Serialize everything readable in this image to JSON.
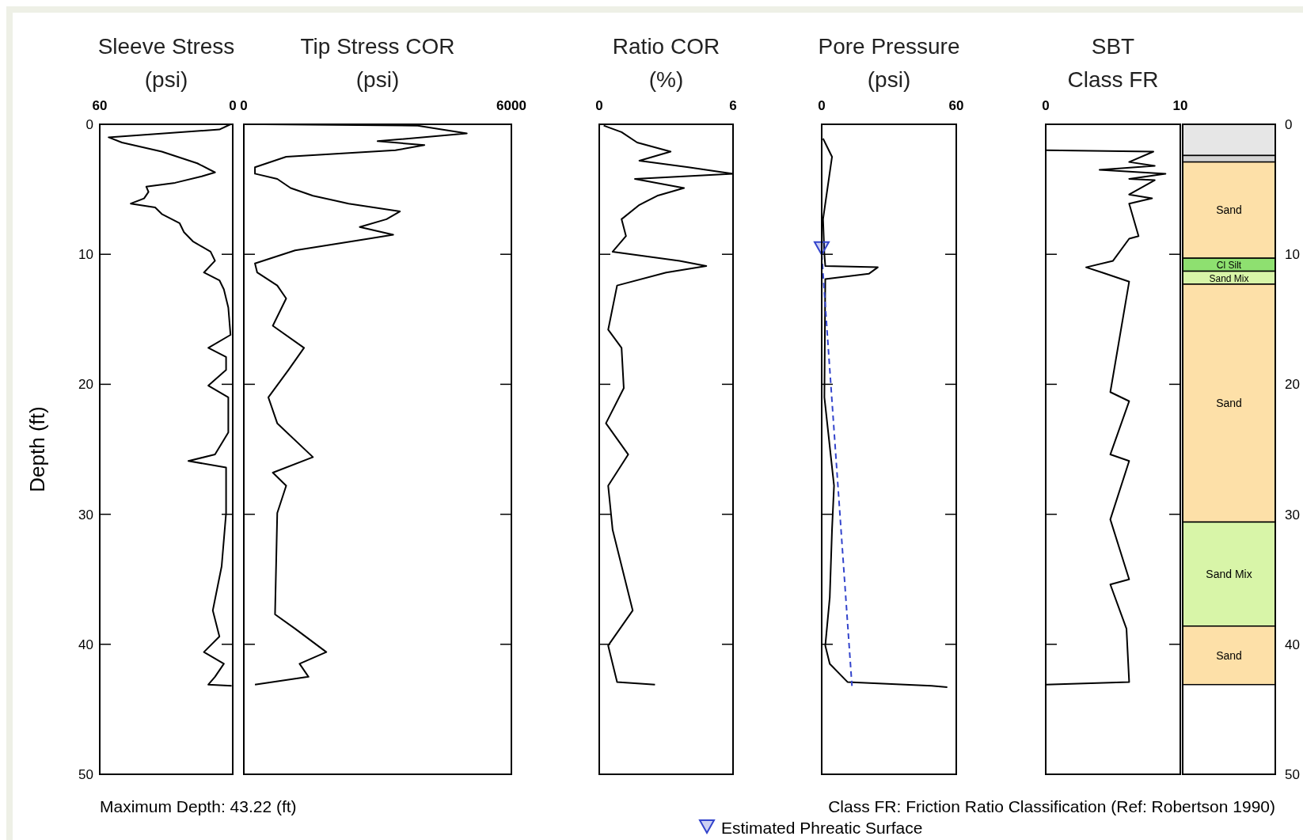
{
  "chart_data": [
    {
      "type": "line",
      "title": "Sleeve Stress",
      "subtitle": "(psi)",
      "ylabel": "Depth (ft)",
      "orientation": "horizontal",
      "xlim": [
        60,
        0
      ],
      "xticks": [
        60,
        0
      ],
      "ylim": [
        50,
        0
      ],
      "yticks": [
        0,
        10,
        20,
        30,
        40,
        50
      ],
      "annotations": [
        "Maximum Depth: 43.22 (ft)"
      ],
      "series": [
        {
          "color": "#000000",
          "x": [
            0,
            0.4,
            1.0,
            1.4,
            2.1,
            3.0,
            3.7,
            4.0,
            4.5,
            4.8,
            5.2,
            5.7,
            6.1,
            6.4,
            6.9,
            7.6,
            8.3,
            9.0,
            9.8,
            10.5,
            11.4,
            12,
            12.7,
            14.1,
            16.2,
            17.2,
            17.9,
            18.9,
            20.1,
            21,
            23.7,
            25.4,
            25.9,
            26.4,
            29.9,
            34,
            37.4,
            39.4,
            40.6,
            41.5,
            42.5,
            43.1,
            43.2
          ],
          "values": [
            1,
            6,
            56,
            50,
            32,
            16,
            8,
            14,
            26,
            39,
            38,
            40,
            46,
            35,
            32,
            24,
            22,
            18,
            10,
            8,
            13,
            6,
            4,
            2,
            1,
            11,
            3,
            3,
            11,
            2,
            2,
            8,
            20,
            3,
            3,
            5,
            9,
            6,
            13,
            4,
            8,
            11,
            0.5
          ]
        }
      ]
    },
    {
      "type": "line",
      "title": "Tip Stress COR",
      "subtitle": "(psi)",
      "orientation": "horizontal",
      "xlim": [
        0,
        6000
      ],
      "xticks": [
        0,
        6000
      ],
      "ylim": [
        50,
        0
      ],
      "yticks": [
        0,
        10,
        20,
        30,
        40,
        50
      ],
      "tick_labels": "x",
      "series": [
        {
          "color": "#000000",
          "x": [
            0,
            0.1,
            0.7,
            1.3,
            1.6,
            2.0,
            2.5,
            3.3,
            3.8,
            4.2,
            4.9,
            5.5,
            6.1,
            6.7,
            7.3,
            7.9,
            8.5,
            8.8,
            9.7,
            10.7,
            11.4,
            12.4,
            13.4,
            15.5,
            17.2,
            18.9,
            21,
            23,
            25.6,
            26.8,
            27.8,
            29.9,
            37.7,
            38.8,
            40.6,
            41.5,
            42.5,
            43.1
          ],
          "values": [
            450,
            3900,
            5000,
            3000,
            4050,
            3400,
            950,
            250,
            250,
            750,
            1050,
            1550,
            2350,
            3500,
            3200,
            2600,
            3350,
            2800,
            1150,
            250,
            300,
            750,
            950,
            650,
            1350,
            1000,
            550,
            750,
            1550,
            650,
            950,
            750,
            700,
            1150,
            1850,
            1250,
            1450,
            250
          ]
        }
      ]
    },
    {
      "type": "line",
      "title": "Ratio COR",
      "subtitle": "(%)",
      "orientation": "horizontal",
      "xlim": [
        0,
        6
      ],
      "xticks": [
        0,
        6
      ],
      "ylim": [
        50,
        0
      ],
      "yticks": [
        0,
        10,
        20,
        30,
        40,
        50
      ],
      "tick_labels": "x",
      "series": [
        {
          "color": "#000000",
          "x": [
            0.1,
            0.6,
            1.4,
            2.1,
            2.8,
            3.3,
            3.8,
            4.2,
            4.9,
            5.5,
            6.2,
            7.3,
            8.6,
            9.8,
            10.5,
            10.9,
            11.4,
            12.4,
            15.8,
            17.2,
            20.3,
            23,
            25.4,
            27.8,
            31.2,
            37.4,
            40.1,
            42.9,
            43.1
          ],
          "values": [
            0.2,
            1.0,
            1.7,
            3.2,
            1.8,
            4.0,
            6.0,
            1.6,
            3.8,
            2.6,
            1.8,
            1.0,
            1.2,
            0.6,
            3.6,
            4.8,
            3.0,
            0.8,
            0.4,
            1.0,
            1.1,
            0.3,
            1.3,
            0.4,
            0.6,
            1.5,
            0.4,
            0.8,
            2.5
          ]
        }
      ]
    },
    {
      "type": "line",
      "title": "Pore Pressure",
      "subtitle": "(psi)",
      "orientation": "horizontal",
      "xlim": [
        0,
        60
      ],
      "xticks": [
        0,
        60
      ],
      "ylim": [
        50,
        0
      ],
      "yticks": [
        0,
        10,
        20,
        30,
        40,
        50
      ],
      "tick_labels": "x",
      "legend": "bottom",
      "series": [
        {
          "color": "#000000",
          "x": [
            1.1,
            2.5,
            7.3,
            10,
            10.9,
            11,
            11.5,
            11.9,
            21,
            27.8,
            31.2,
            36.4,
            40.1,
            41.5,
            42.9,
            43.2,
            43.3
          ],
          "values": [
            0.6,
            4.6,
            0.6,
            1.2,
            1.6,
            25,
            21,
            1.6,
            1.2,
            5.5,
            4.6,
            3.6,
            1.6,
            3.6,
            11.5,
            49,
            56
          ]
        },
        {
          "type": "line",
          "color": "#3344cc",
          "line_style": "dashed",
          "x": [
            10.0,
            43.2
          ],
          "values": [
            0,
            13.5
          ]
        },
        {
          "type": "scatter",
          "name": "Estimated Phreatic Surface",
          "color": "#3344cc",
          "marker": "triangle",
          "x": [
            9.6
          ],
          "values": [
            0
          ]
        }
      ]
    },
    {
      "type": "line",
      "title": "SBT",
      "subtitle": "Class FR",
      "orientation": "horizontal",
      "xlim": [
        0,
        10
      ],
      "xticks": [
        0,
        10
      ],
      "ylim": [
        50,
        0
      ],
      "yticks": [
        0,
        10,
        20,
        30,
        40,
        50
      ],
      "tick_labels": "x",
      "annotations": [
        "Class FR: Friction Ratio Classification (Ref: Robertson 1990)"
      ],
      "series": [
        {
          "color": "#000000",
          "x": [
            2.0,
            2.1,
            2.9,
            3.2,
            3.5,
            3.8,
            4.2,
            4.3,
            5.4,
            5.7,
            6.1,
            8.6,
            8.8,
            10.5,
            11,
            11.4,
            12.1,
            20.6,
            21.3,
            25.4,
            25.9,
            30.4,
            35.0,
            35.4,
            38.8,
            42.9,
            43.1
          ],
          "values": [
            0,
            8,
            6.2,
            8.1,
            4.0,
            8.9,
            6.2,
            8.1,
            6.2,
            7.9,
            6.2,
            6.9,
            6.2,
            5,
            3,
            4.2,
            6.2,
            4.8,
            6.2,
            4.8,
            6.2,
            4.8,
            6.2,
            4.8,
            6.0,
            6.2,
            0
          ]
        }
      ]
    },
    {
      "type": "bar",
      "stacked": true,
      "categories": [
        null
      ],
      "ylim": [
        50,
        0
      ],
      "yticks": [
        0,
        10,
        20,
        30,
        40,
        50
      ],
      "tick_labels": "y",
      "series": [
        {
          "color": "#e6e6e6",
          "values": [
            2.4
          ]
        },
        {
          "color": "#d4d4d4",
          "values": [
            0.5
          ]
        },
        {
          "name": "Sand",
          "color": "#fde0a8",
          "values": [
            7.4
          ]
        },
        {
          "name": "Cl Silt",
          "color": "#8ee070",
          "values": [
            1.0
          ]
        },
        {
          "name": "Sand Mix",
          "color": "#d8f5a8",
          "values": [
            1.0
          ]
        },
        {
          "name": "Sand",
          "color": "#fde0a8",
          "values": [
            18.3
          ]
        },
        {
          "name": "Sand Mix",
          "color": "#d8f5a8",
          "values": [
            8.0
          ]
        },
        {
          "name": "Sand",
          "color": "#fde0a8",
          "values": [
            4.5
          ]
        }
      ]
    }
  ]
}
